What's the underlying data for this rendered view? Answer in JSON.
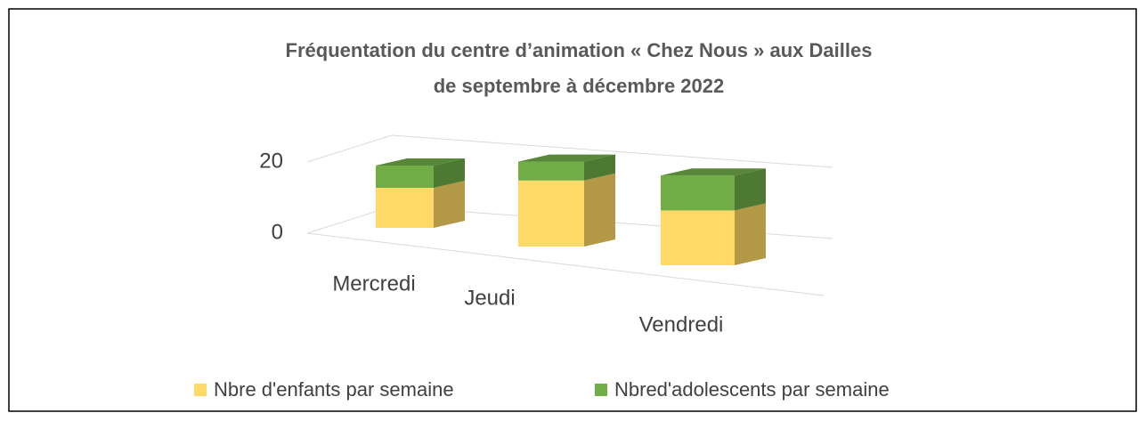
{
  "chart_data": {
    "type": "bar3d_stacked",
    "title": [
      "Fréquentation du centre d’animation « Chez Nous » aux Dailles",
      "de septembre à décembre 2022"
    ],
    "categories": [
      "Mercredi",
      "Jeudi",
      "Vendredi"
    ],
    "series": [
      {
        "name": "Nbre d'enfants par semaine",
        "color": "#FFD966",
        "values": [
          9,
          14,
          11
        ]
      },
      {
        "name": "Nbred'adolescents par semaine",
        "color": "#70AD47",
        "values": [
          5,
          4,
          7
        ]
      }
    ],
    "ylim": [
      0,
      20
    ],
    "yticks": [
      0,
      20
    ],
    "grid": true,
    "legend": "bottom"
  }
}
